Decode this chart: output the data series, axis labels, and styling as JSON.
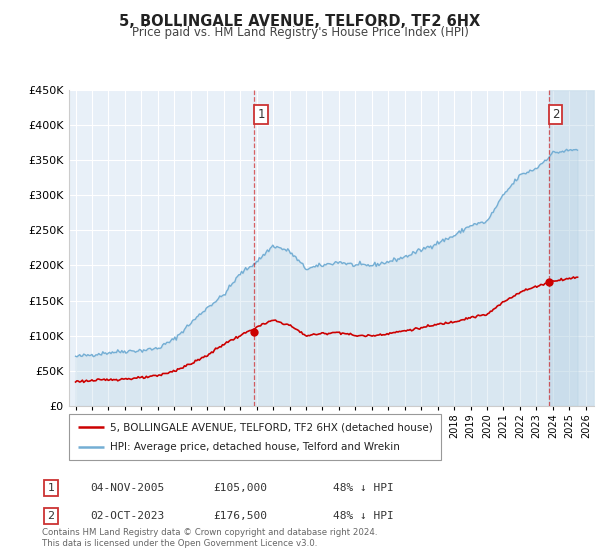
{
  "title": "5, BOLLINGALE AVENUE, TELFORD, TF2 6HX",
  "subtitle": "Price paid vs. HM Land Registry's House Price Index (HPI)",
  "ylim": [
    0,
    450000
  ],
  "xlim_start": 1994.6,
  "xlim_end": 2026.5,
  "hpi_color": "#74aed4",
  "hpi_fill_color": "#aecde0",
  "price_color": "#cc0000",
  "background_color": "#e8f0f8",
  "grid_color": "#ffffff",
  "legend_label_price": "5, BOLLINGALE AVENUE, TELFORD, TF2 6HX (detached house)",
  "legend_label_hpi": "HPI: Average price, detached house, Telford and Wrekin",
  "sale1_date_num": 2005.84,
  "sale1_price": 105000,
  "sale2_date_num": 2023.75,
  "sale2_price": 176500,
  "annotation1_text": "1",
  "annotation1_date": "04-NOV-2005",
  "annotation1_price": "£105,000",
  "annotation1_hpi": "48% ↓ HPI",
  "annotation2_text": "2",
  "annotation2_date": "02-OCT-2023",
  "annotation2_price": "£176,500",
  "annotation2_hpi": "48% ↓ HPI",
  "footer": "Contains HM Land Registry data © Crown copyright and database right 2024.\nThis data is licensed under the Open Government Licence v3.0."
}
